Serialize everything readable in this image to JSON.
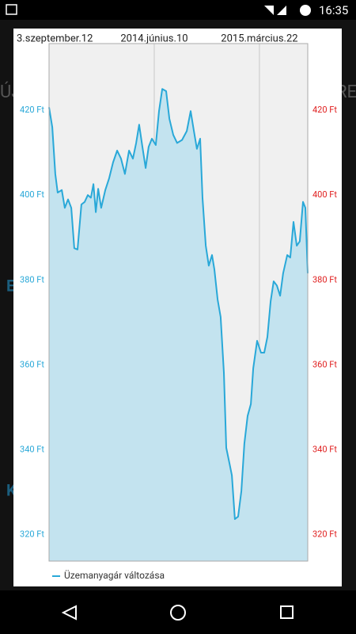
{
  "status_bar": {
    "time": "16:35"
  },
  "background": {
    "fragments": [
      "ÚJ",
      "RE",
      "E",
      "K"
    ]
  },
  "chart_data": {
    "type": "line",
    "x": [
      0,
      1.5,
      2.9,
      4,
      5.9,
      7.3,
      8.8,
      10.3,
      11.7,
      13.2,
      15,
      16.5,
      18,
      19.4,
      20.6,
      21.7,
      22.8,
      24.2,
      26.1,
      27.9,
      29.7,
      31.6,
      33.4,
      35.2,
      37.1,
      38.9,
      40.4,
      41.8,
      43.3,
      44.8,
      46.2,
      47.7,
      49.5,
      51,
      52.5,
      54.3,
      55.8,
      57.6,
      59.4,
      61.7,
      63.9,
      65.7,
      67.2,
      68.6,
      70.1,
      71.2,
      72.7,
      74.1,
      75.6,
      76.7,
      78.2,
      79.6,
      81.1,
      82.2,
      83.7,
      84.8,
      86.2,
      87.7,
      89.2,
      90.6,
      92.1,
      93.6,
      94.7,
      96.5,
      98.3,
      99.8,
      101.3,
      102.8,
      104.2,
      105.7,
      107.2,
      108.6,
      110.5,
      111.9,
      113.4,
      114.9,
      116.3,
      117.8,
      118.9,
      120
    ],
    "series": [
      {
        "name": "Üzemanyagár változása",
        "color": "#29a8d8",
        "fill": "#c3e3ef",
        "values": [
          420.7,
          416,
          405,
          400.6,
          401.2,
          397,
          399,
          397,
          387.5,
          387.2,
          397.8,
          398.4,
          400,
          399.4,
          402.6,
          396,
          401.5,
          397,
          401.2,
          404,
          407.7,
          410.5,
          408.6,
          405,
          410.5,
          408.6,
          412.3,
          416.6,
          411.4,
          406.4,
          411.4,
          413.3,
          411.8,
          419.8,
          425,
          424.5,
          418,
          414.2,
          412.3,
          413,
          415.1,
          419.8,
          415.1,
          410.9,
          413.3,
          399.3,
          388.1,
          383.4,
          385.9,
          382.5,
          375.4,
          371.3,
          358.2,
          340.5,
          336.8,
          334,
          323.7,
          324.3,
          330.3,
          341.5,
          348,
          350.8,
          359.2,
          365.7,
          362.9,
          362.9,
          366.6,
          375,
          379.7,
          378.7,
          376.3,
          381.6,
          385.9,
          385.3,
          393.7,
          388.1,
          389.1,
          398.4,
          397,
          381.6
        ]
      }
    ],
    "xlim": [
      0,
      120
    ],
    "xticks": [
      {
        "value": 0,
        "label": "3.szeptember.12"
      },
      {
        "value": 48.8,
        "label": "2014.június.10"
      },
      {
        "value": 97.6,
        "label": "2015.március.22"
      }
    ],
    "ylim": [
      313.8,
      435.7
    ],
    "yticks": [
      {
        "value": 320,
        "label": "320 Ft"
      },
      {
        "value": 340,
        "label": "340 Ft"
      },
      {
        "value": 360,
        "label": "360 Ft"
      },
      {
        "value": 380,
        "label": "380 Ft"
      },
      {
        "value": 400,
        "label": "400 Ft"
      },
      {
        "value": 420,
        "label": "420 Ft"
      }
    ],
    "y2lim": [
      313.8,
      435.7
    ],
    "y2ticks": [
      {
        "value": 320,
        "label": "320 Ft"
      },
      {
        "value": 340,
        "label": "340 Ft"
      },
      {
        "value": 360,
        "label": "360 Ft"
      },
      {
        "value": 380,
        "label": "380 Ft"
      },
      {
        "value": 400,
        "label": "400 Ft"
      },
      {
        "value": 420,
        "label": "420 Ft"
      }
    ],
    "y_color": "#29a8d8",
    "y2_color": "#e02020",
    "grid": true
  }
}
